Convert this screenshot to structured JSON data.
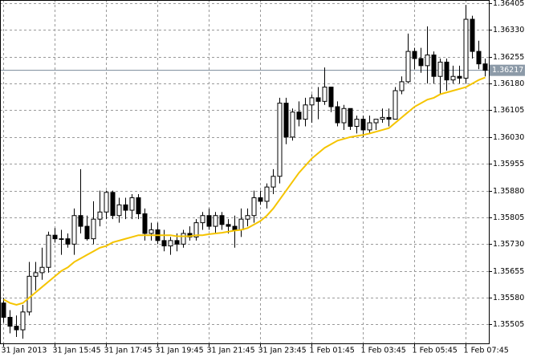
{
  "chart_data": {
    "type": "candlestick",
    "categories": [
      "31 Jan 2013",
      null,
      null,
      null,
      null,
      null,
      null,
      null,
      "31 Jan 15:45",
      null,
      null,
      null,
      null,
      null,
      null,
      null,
      "31 Jan 17:45",
      null,
      null,
      null,
      null,
      null,
      null,
      null,
      "31 Jan 19:45",
      null,
      null,
      null,
      null,
      null,
      null,
      null,
      "31 Jan 21:45",
      null,
      null,
      null,
      null,
      null,
      null,
      null,
      "31 Jan 23:45",
      null,
      null,
      null,
      null,
      null,
      null,
      null,
      "1 Feb 01:45",
      null,
      null,
      null,
      null,
      null,
      null,
      null,
      "1 Feb 03:45",
      null,
      null,
      null,
      null,
      null,
      null,
      null,
      "1 Feb 05:45",
      null,
      null,
      null,
      null,
      null,
      null,
      null,
      "1 Feb 07:45",
      null,
      null,
      null
    ],
    "open": [
      1.35565,
      1.35525,
      1.355,
      1.3549,
      1.3554,
      1.3564,
      1.3565,
      1.35665,
      1.35755,
      1.35745,
      1.35745,
      1.3573,
      1.3581,
      1.3578,
      1.35745,
      1.358,
      1.3582,
      1.35875,
      1.3581,
      1.3584,
      1.35825,
      1.3586,
      1.35815,
      1.3576,
      1.3577,
      1.3574,
      1.35725,
      1.3574,
      1.3573,
      1.3576,
      1.3575,
      1.3579,
      1.3581,
      1.3578,
      1.3581,
      1.35785,
      1.3578,
      1.3577,
      1.358,
      1.3581,
      1.3586,
      1.3585,
      1.3589,
      1.3592,
      1.36125,
      1.3603,
      1.361,
      1.3608,
      1.3612,
      1.3614,
      1.3613,
      1.3617,
      1.36115,
      1.3607,
      1.3611,
      1.3606,
      1.3608,
      1.3605,
      1.3607,
      1.3608,
      1.36085,
      1.3608,
      1.3616,
      1.36185,
      1.3627,
      1.3625,
      1.3623,
      1.3626,
      1.362,
      1.3624,
      1.3619,
      1.362,
      1.36195,
      1.3636,
      1.3627,
      1.36235
    ],
    "high": [
      1.3558,
      1.35545,
      1.3553,
      1.3556,
      1.3568,
      1.3568,
      1.3572,
      1.35765,
      1.35775,
      1.3577,
      1.3576,
      1.3583,
      1.3594,
      1.3581,
      1.3585,
      1.3588,
      1.3588,
      1.3588,
      1.3586,
      1.3586,
      1.3587,
      1.3587,
      1.3583,
      1.3579,
      1.3579,
      1.3577,
      1.3575,
      1.3576,
      1.3577,
      1.3578,
      1.358,
      1.3582,
      1.3583,
      1.3582,
      1.3582,
      1.358,
      1.3581,
      1.3583,
      1.3583,
      1.3588,
      1.3588,
      1.359,
      1.3594,
      1.3614,
      1.3614,
      1.3611,
      1.3613,
      1.3614,
      1.3615,
      1.3617,
      1.36225,
      1.3617,
      1.3613,
      1.3612,
      1.3611,
      1.3609,
      1.3609,
      1.3609,
      1.3608,
      1.3611,
      1.3611,
      1.3617,
      1.362,
      1.3632,
      1.3628,
      1.3628,
      1.3634,
      1.3627,
      1.3625,
      1.3625,
      1.3623,
      1.3623,
      1.364,
      1.3637,
      1.363,
      1.3625
    ],
    "low": [
      1.3551,
      1.3548,
      1.3547,
      1.35465,
      1.3553,
      1.356,
      1.3563,
      1.3565,
      1.35735,
      1.357,
      1.3572,
      1.357,
      1.3576,
      1.3574,
      1.3573,
      1.3578,
      1.358,
      1.358,
      1.3579,
      1.358,
      1.358,
      1.358,
      1.3574,
      1.3574,
      1.3573,
      1.3571,
      1.357,
      1.3571,
      1.3572,
      1.3574,
      1.3574,
      1.3577,
      1.3577,
      1.3576,
      1.3577,
      1.3576,
      1.3572,
      1.3575,
      1.3578,
      1.3579,
      1.3584,
      1.3583,
      1.3587,
      1.359,
      1.3601,
      1.3602,
      1.3606,
      1.3606,
      1.3607,
      1.3608,
      1.3612,
      1.361,
      1.3606,
      1.3605,
      1.3605,
      1.3604,
      1.3603,
      1.3604,
      1.3605,
      1.3607,
      1.3606,
      1.3608,
      1.3615,
      1.3618,
      1.3622,
      1.3621,
      1.3618,
      1.3618,
      1.3615,
      1.3616,
      1.3618,
      1.3618,
      1.3618,
      1.3625,
      1.3622,
      1.362
    ],
    "close": [
      1.35525,
      1.355,
      1.3549,
      1.3554,
      1.3564,
      1.3565,
      1.35665,
      1.35755,
      1.35745,
      1.35745,
      1.3573,
      1.3581,
      1.3578,
      1.35745,
      1.358,
      1.3582,
      1.35875,
      1.3581,
      1.3584,
      1.35825,
      1.3586,
      1.35815,
      1.3576,
      1.3577,
      1.3574,
      1.35725,
      1.3574,
      1.3573,
      1.3576,
      1.3575,
      1.3579,
      1.3581,
      1.3578,
      1.3581,
      1.35785,
      1.3578,
      1.3577,
      1.358,
      1.3581,
      1.3586,
      1.3585,
      1.3589,
      1.3592,
      1.36125,
      1.3603,
      1.361,
      1.3608,
      1.3612,
      1.3614,
      1.3613,
      1.3617,
      1.36115,
      1.3607,
      1.3611,
      1.3606,
      1.3608,
      1.3605,
      1.3607,
      1.3608,
      1.36085,
      1.3608,
      1.3616,
      1.36185,
      1.3627,
      1.3625,
      1.3623,
      1.3626,
      1.362,
      1.3624,
      1.3619,
      1.362,
      1.36195,
      1.3636,
      1.3627,
      1.36235,
      1.36217
    ],
    "series": [
      {
        "color": "#f5c400",
        "values": [
          1.35575,
          1.35565,
          1.3556,
          1.35565,
          1.3558,
          1.35595,
          1.3561,
          1.35625,
          1.3564,
          1.35655,
          1.35665,
          1.3568,
          1.3569,
          1.357,
          1.3571,
          1.3572,
          1.35725,
          1.35735,
          1.3574,
          1.35745,
          1.3575,
          1.35755,
          1.35755,
          1.35755,
          1.35755,
          1.35755,
          1.35755,
          1.35752,
          1.35752,
          1.35752,
          1.35755,
          1.35755,
          1.35758,
          1.3576,
          1.35762,
          1.35765,
          1.35768,
          1.3577,
          1.35775,
          1.35785,
          1.35795,
          1.3581,
          1.3583,
          1.35855,
          1.3588,
          1.35905,
          1.3593,
          1.3595,
          1.3597,
          1.35985,
          1.36,
          1.3601,
          1.3602,
          1.36025,
          1.3603,
          1.36033,
          1.36036,
          1.3604,
          1.36045,
          1.3605,
          1.36055,
          1.3607,
          1.36085,
          1.361,
          1.36115,
          1.36125,
          1.36135,
          1.3614,
          1.3615,
          1.36155,
          1.3616,
          1.36165,
          1.3617,
          1.3618,
          1.3619,
          1.36197
        ]
      }
    ],
    "current_price": 1.36217,
    "ylim": [
      1.35452,
      1.36414
    ],
    "yticks": [
      1.36405,
      {
        "value": 1.3633,
        "label": "1.36330"
      },
      1.36255,
      {
        "value": 1.3618,
        "label": "1.36180"
      },
      1.36105,
      {
        "value": 1.3603,
        "label": "1.36030"
      },
      1.35955,
      {
        "value": 1.3588,
        "label": "1.35880"
      },
      1.35805,
      {
        "value": 1.3573,
        "label": "1.35730"
      },
      1.35655,
      {
        "value": 1.3558,
        "label": "1.35580"
      },
      1.35505
    ],
    "grid": true
  }
}
